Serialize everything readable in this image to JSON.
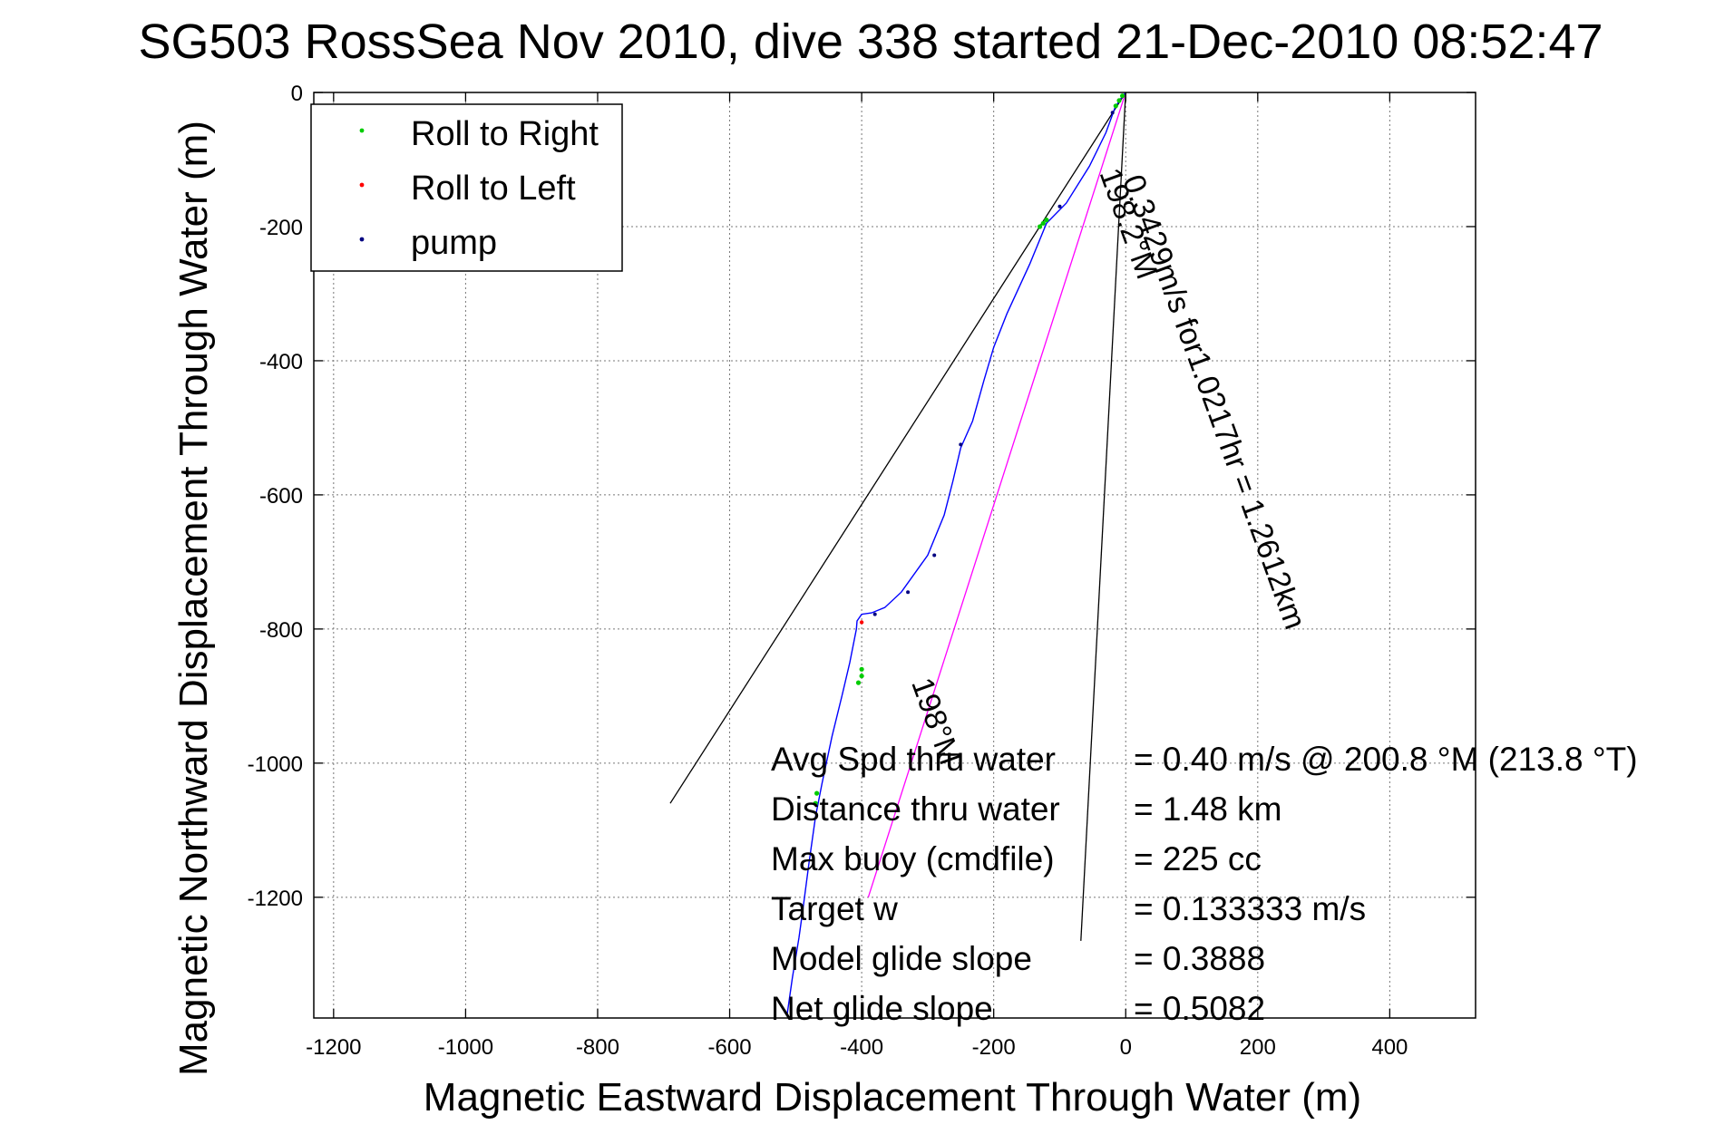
{
  "chart_data": {
    "type": "scatter",
    "title": "SG503 RossSea Nov 2010, dive 338 started 21-Dec-2010 08:52:47",
    "xlabel": "Magnetic Eastward Displacement Through Water (m)",
    "ylabel": "Magnetic Northward Displacement Through Water (m)",
    "xlim": [
      -1230,
      530
    ],
    "ylim": [
      -1380,
      0
    ],
    "xticks": [
      -1200,
      -1000,
      -800,
      -600,
      -400,
      -200,
      0,
      200,
      400
    ],
    "yticks": [
      0,
      -200,
      -400,
      -600,
      -800,
      -1000,
      -1200
    ],
    "grid": true,
    "legend_position": "top-left",
    "legend": [
      {
        "label": "Roll to Right",
        "color": "#00cc00",
        "marker": "dot"
      },
      {
        "label": "Roll to Left",
        "color": "#ff0000",
        "marker": "dot"
      },
      {
        "label": "pump",
        "color": "#000080",
        "marker": "dot"
      }
    ],
    "track": {
      "name": "track",
      "color": "#0000ff",
      "points": [
        [
          0,
          0
        ],
        [
          -8,
          -10
        ],
        [
          -16,
          -22
        ],
        [
          -30,
          -60
        ],
        [
          -55,
          -110
        ],
        [
          -90,
          -165
        ],
        [
          -120,
          -195
        ],
        [
          -145,
          -255
        ],
        [
          -180,
          -330
        ],
        [
          -200,
          -380
        ],
        [
          -215,
          -430
        ],
        [
          -232,
          -490
        ],
        [
          -250,
          -530
        ],
        [
          -262,
          -580
        ],
        [
          -275,
          -630
        ],
        [
          -300,
          -690
        ],
        [
          -340,
          -745
        ],
        [
          -365,
          -768
        ],
        [
          -385,
          -776
        ],
        [
          -400,
          -778
        ],
        [
          -407,
          -788
        ],
        [
          -408,
          -800
        ],
        [
          -418,
          -850
        ],
        [
          -430,
          -900
        ],
        [
          -445,
          -960
        ],
        [
          -460,
          -1030
        ],
        [
          -470,
          -1080
        ],
        [
          -480,
          -1150
        ],
        [
          -488,
          -1210
        ],
        [
          -495,
          -1260
        ],
        [
          -505,
          -1320
        ],
        [
          -513,
          -1375
        ]
      ]
    },
    "roll_right_points": [
      [
        -5,
        -5
      ],
      [
        -10,
        -12
      ],
      [
        -15,
        -20
      ],
      [
        -120,
        -190
      ],
      [
        -125,
        -195
      ],
      [
        -130,
        -200
      ],
      [
        -400,
        -860
      ],
      [
        -400,
        -870
      ],
      [
        -405,
        -880
      ],
      [
        -468,
        -1045
      ],
      [
        -470,
        -1060
      ]
    ],
    "roll_left_points": [
      [
        -400,
        -790
      ]
    ],
    "pump_points": [
      [
        -20,
        -30
      ],
      [
        -100,
        -170
      ],
      [
        -250,
        -525
      ],
      [
        -290,
        -690
      ],
      [
        -330,
        -745
      ],
      [
        -380,
        -778
      ]
    ],
    "lines": [
      {
        "name": "avg-direction-line",
        "color": "#ff00ff",
        "points": [
          [
            0,
            0
          ],
          [
            -390,
            -1200
          ]
        ]
      },
      {
        "name": "left-envelope-line",
        "color": "#000000",
        "points": [
          [
            0,
            0
          ],
          [
            -690,
            -1060
          ]
        ]
      },
      {
        "name": "right-envelope-line",
        "color": "#000000",
        "points": [
          [
            0,
            0
          ],
          [
            -68,
            -1265
          ]
        ]
      }
    ],
    "annotations": [
      {
        "text": "0.3429m/s for1.0217hr = 1.2612km",
        "x": -5,
        "y": -130,
        "rotation_deg": 70
      },
      {
        "text": "198.2°M",
        "x": -40,
        "y": -120,
        "rotation_deg": 70
      },
      {
        "text": "198°M",
        "x": -325,
        "y": -880,
        "rotation_deg": 70
      }
    ],
    "summary": [
      {
        "label": "Avg Spd thru water",
        "value": "=  0.40 m/s @ 200.8 °M (213.8 °T)"
      },
      {
        "label": "Distance thru water",
        "value": "=  1.48 km"
      },
      {
        "label": "Max buoy (cmdfile)",
        "value": "= 225 cc"
      },
      {
        "label": "Target w",
        "value": "= 0.133333 m/s"
      },
      {
        "label": "Model glide slope",
        "value": "= 0.3888"
      },
      {
        "label": "Net glide slope",
        "value": "= 0.5082"
      }
    ]
  }
}
